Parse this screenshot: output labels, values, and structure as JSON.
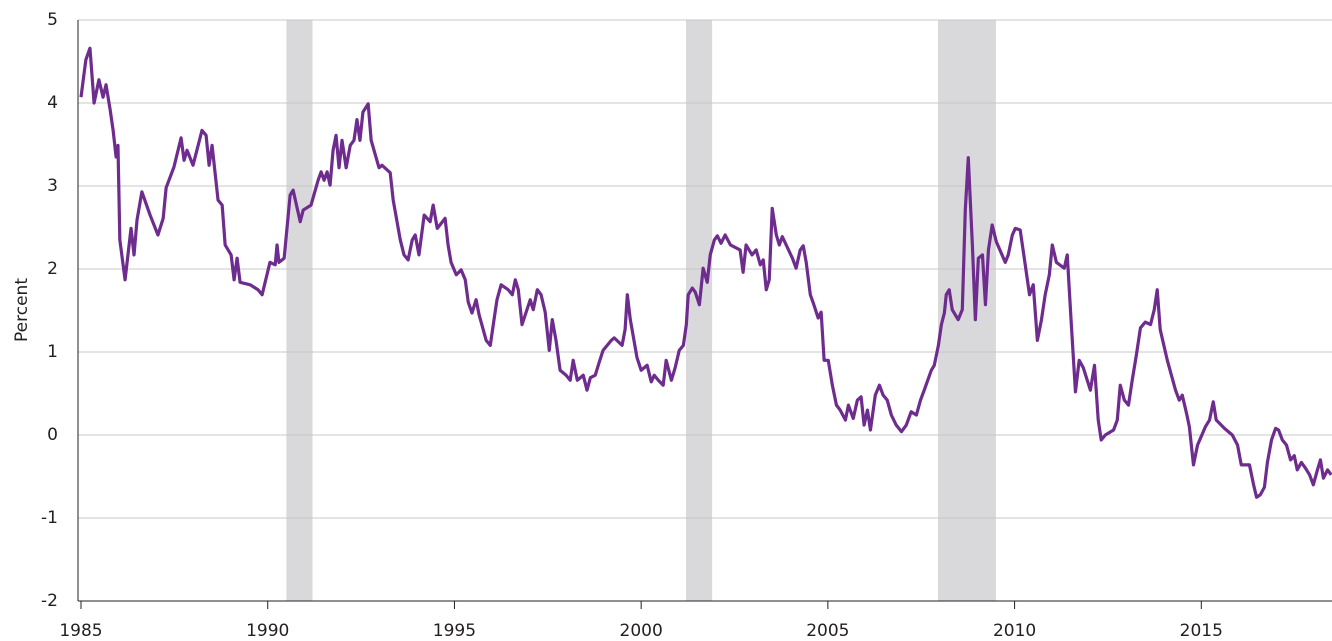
{
  "chart_data": {
    "type": "line",
    "ylabel": "Percent",
    "xlim": [
      1985,
      2018.5
    ],
    "xticks": [
      1985,
      1990,
      1995,
      2000,
      2005,
      2010,
      2015
    ],
    "ylim": [
      -2,
      5
    ],
    "yticks": [
      -2,
      -1,
      0,
      1,
      2,
      3,
      4,
      5
    ],
    "grid": true,
    "shade_color": "#d9d9db",
    "shaded_regions": [
      [
        1990.5,
        1991.2
      ],
      [
        2001.2,
        2001.9
      ],
      [
        2007.95,
        2009.5
      ]
    ],
    "x": [
      1985.0,
      1985.13,
      1985.24,
      1985.35,
      1985.48,
      1985.59,
      1985.67,
      1985.78,
      1985.86,
      1985.94,
      1985.99,
      1986.04,
      1986.18,
      1986.34,
      1986.42,
      1986.5,
      1986.63,
      1986.85,
      1987.06,
      1987.2,
      1987.28,
      1987.49,
      1987.68,
      1987.76,
      1987.84,
      1988.0,
      1988.24,
      1988.35,
      1988.43,
      1988.51,
      1988.67,
      1988.78,
      1988.86,
      1989.02,
      1989.1,
      1989.18,
      1989.26,
      1989.53,
      1989.74,
      1989.85,
      1990.06,
      1990.2,
      1990.25,
      1990.3,
      1990.44,
      1990.6,
      1990.68,
      1990.87,
      1990.95,
      1991.16,
      1991.35,
      1991.43,
      1991.51,
      1991.59,
      1991.67,
      1991.75,
      1991.83,
      1991.91,
      1991.99,
      1992.1,
      1992.21,
      1992.31,
      1992.39,
      1992.47,
      1992.55,
      1992.69,
      1992.77,
      1992.98,
      1993.06,
      1993.28,
      1993.36,
      1993.55,
      1993.65,
      1993.76,
      1993.87,
      1993.95,
      1994.05,
      1994.19,
      1994.35,
      1994.43,
      1994.54,
      1994.75,
      1994.83,
      1994.91,
      1995.05,
      1995.18,
      1995.29,
      1995.37,
      1995.47,
      1995.58,
      1995.66,
      1995.85,
      1995.96,
      1996.06,
      1996.14,
      1996.25,
      1996.44,
      1996.55,
      1996.63,
      1996.71,
      1996.81,
      1997.03,
      1997.11,
      1997.22,
      1997.32,
      1997.43,
      1997.54,
      1997.62,
      1997.72,
      1997.83,
      1997.99,
      1998.1,
      1998.18,
      1998.29,
      1998.45,
      1998.55,
      1998.64,
      1998.77,
      1998.88,
      1998.98,
      1999.2,
      1999.28,
      1999.49,
      1999.57,
      1999.63,
      1999.71,
      1999.89,
      2000.0,
      2000.16,
      2000.27,
      2000.35,
      2000.46,
      2000.59,
      2000.67,
      2000.81,
      2000.91,
      2001.02,
      2001.13,
      2001.21,
      2001.26,
      2001.37,
      2001.45,
      2001.56,
      2001.66,
      2001.77,
      2001.85,
      2001.96,
      2002.04,
      2002.14,
      2002.25,
      2002.39,
      2002.65,
      2002.73,
      2002.81,
      2002.97,
      2003.08,
      2003.19,
      2003.27,
      2003.35,
      2003.43,
      2003.51,
      2003.62,
      2003.7,
      2003.78,
      2004.05,
      2004.15,
      2004.26,
      2004.34,
      2004.42,
      2004.53,
      2004.61,
      2004.74,
      2004.82,
      2004.9,
      2005.01,
      2005.12,
      2005.23,
      2005.33,
      2005.47,
      2005.55,
      2005.68,
      2005.79,
      2005.89,
      2005.97,
      2006.06,
      2006.14,
      2006.27,
      2006.38,
      2006.48,
      2006.59,
      2006.7,
      2006.83,
      2006.97,
      2007.1,
      2007.23,
      2007.37,
      2007.48,
      2007.58,
      2007.77,
      2007.85,
      2007.96,
      2008.04,
      2008.12,
      2008.17,
      2008.25,
      2008.33,
      2008.49,
      2008.6,
      2008.68,
      2008.76,
      2008.87,
      2008.95,
      2009.03,
      2009.14,
      2009.22,
      2009.3,
      2009.4,
      2009.51,
      2009.75,
      2009.83,
      2009.94,
      2010.02,
      2010.15,
      2010.26,
      2010.4,
      2010.5,
      2010.61,
      2010.72,
      2010.82,
      2010.93,
      2011.01,
      2011.12,
      2011.33,
      2011.41,
      2011.52,
      2011.63,
      2011.73,
      2011.84,
      2012.03,
      2012.14,
      2012.24,
      2012.32,
      2012.43,
      2012.65,
      2012.75,
      2012.83,
      2012.94,
      2013.05,
      2013.15,
      2013.26,
      2013.37,
      2013.5,
      2013.64,
      2013.74,
      2013.82,
      2013.9,
      2014.09,
      2014.2,
      2014.31,
      2014.41,
      2014.49,
      2014.6,
      2014.68,
      2014.79,
      2014.9,
      2015.11,
      2015.22,
      2015.32,
      2015.4,
      2015.62,
      2015.83,
      2015.97,
      2016.07,
      2016.29,
      2016.4,
      2016.48,
      2016.58,
      2016.69,
      2016.77,
      2016.88,
      2016.99,
      2017.07,
      2017.17,
      2017.28,
      2017.39,
      2017.49,
      2017.57,
      2017.68,
      2017.79,
      2017.9,
      2018.0,
      2018.11,
      2018.19,
      2018.27,
      2018.38,
      2018.48
    ],
    "series": [
      {
        "color": "#6e2c8e",
        "values": [
          4.07,
          4.52,
          4.66,
          4.0,
          4.28,
          4.07,
          4.22,
          3.92,
          3.67,
          3.35,
          3.49,
          2.35,
          1.87,
          2.49,
          2.17,
          2.59,
          2.93,
          2.65,
          2.41,
          2.61,
          2.98,
          3.23,
          3.58,
          3.31,
          3.43,
          3.25,
          3.67,
          3.61,
          3.25,
          3.49,
          2.83,
          2.77,
          2.29,
          2.17,
          1.87,
          2.13,
          1.84,
          1.81,
          1.75,
          1.69,
          2.08,
          2.05,
          2.29,
          2.08,
          2.13,
          2.89,
          2.95,
          2.57,
          2.71,
          2.77,
          3.07,
          3.17,
          3.07,
          3.17,
          3.01,
          3.43,
          3.61,
          3.22,
          3.55,
          3.22,
          3.49,
          3.55,
          3.8,
          3.55,
          3.89,
          3.99,
          3.55,
          3.22,
          3.25,
          3.16,
          2.83,
          2.35,
          2.17,
          2.11,
          2.35,
          2.41,
          2.17,
          2.65,
          2.57,
          2.77,
          2.49,
          2.61,
          2.29,
          2.08,
          1.93,
          1.99,
          1.87,
          1.6,
          1.47,
          1.63,
          1.45,
          1.14,
          1.08,
          1.39,
          1.63,
          1.81,
          1.75,
          1.69,
          1.87,
          1.75,
          1.33,
          1.63,
          1.51,
          1.75,
          1.69,
          1.48,
          1.02,
          1.39,
          1.14,
          0.78,
          0.72,
          0.66,
          0.9,
          0.66,
          0.72,
          0.54,
          0.69,
          0.72,
          0.88,
          1.02,
          1.14,
          1.17,
          1.08,
          1.27,
          1.69,
          1.39,
          0.93,
          0.78,
          0.84,
          0.64,
          0.72,
          0.66,
          0.6,
          0.9,
          0.66,
          0.81,
          1.02,
          1.08,
          1.33,
          1.69,
          1.77,
          1.72,
          1.57,
          2.01,
          1.84,
          2.17,
          2.35,
          2.4,
          2.31,
          2.41,
          2.29,
          2.23,
          1.96,
          2.29,
          2.17,
          2.23,
          2.05,
          2.11,
          1.75,
          1.87,
          2.73,
          2.41,
          2.29,
          2.39,
          2.13,
          2.01,
          2.23,
          2.28,
          2.08,
          1.69,
          1.59,
          1.41,
          1.48,
          0.9,
          0.9,
          0.6,
          0.36,
          0.3,
          0.18,
          0.36,
          0.2,
          0.42,
          0.46,
          0.12,
          0.3,
          0.06,
          0.48,
          0.6,
          0.48,
          0.42,
          0.24,
          0.12,
          0.04,
          0.12,
          0.28,
          0.24,
          0.42,
          0.54,
          0.78,
          0.84,
          1.08,
          1.33,
          1.47,
          1.69,
          1.75,
          1.51,
          1.39,
          1.51,
          2.71,
          3.34,
          2.29,
          1.39,
          2.13,
          2.17,
          1.57,
          2.23,
          2.53,
          2.33,
          2.08,
          2.17,
          2.41,
          2.49,
          2.47,
          2.13,
          1.69,
          1.81,
          1.14,
          1.39,
          1.69,
          1.93,
          2.29,
          2.08,
          2.01,
          2.17,
          1.33,
          0.52,
          0.9,
          0.81,
          0.54,
          0.84,
          0.18,
          -0.06,
          0.0,
          0.06,
          0.18,
          0.6,
          0.42,
          0.36,
          0.66,
          0.96,
          1.29,
          1.36,
          1.33,
          1.51,
          1.75,
          1.27,
          0.9,
          0.72,
          0.54,
          0.42,
          0.48,
          0.27,
          0.1,
          -0.36,
          -0.12,
          0.1,
          0.18,
          0.4,
          0.18,
          0.08,
          0.0,
          -0.12,
          -0.36,
          -0.36,
          -0.6,
          -0.75,
          -0.72,
          -0.63,
          -0.33,
          -0.06,
          0.08,
          0.06,
          -0.06,
          -0.12,
          -0.3,
          -0.25,
          -0.42,
          -0.33,
          -0.4,
          -0.48,
          -0.6,
          -0.42,
          -0.3,
          -0.52,
          -0.42,
          -0.48
        ]
      }
    ]
  }
}
